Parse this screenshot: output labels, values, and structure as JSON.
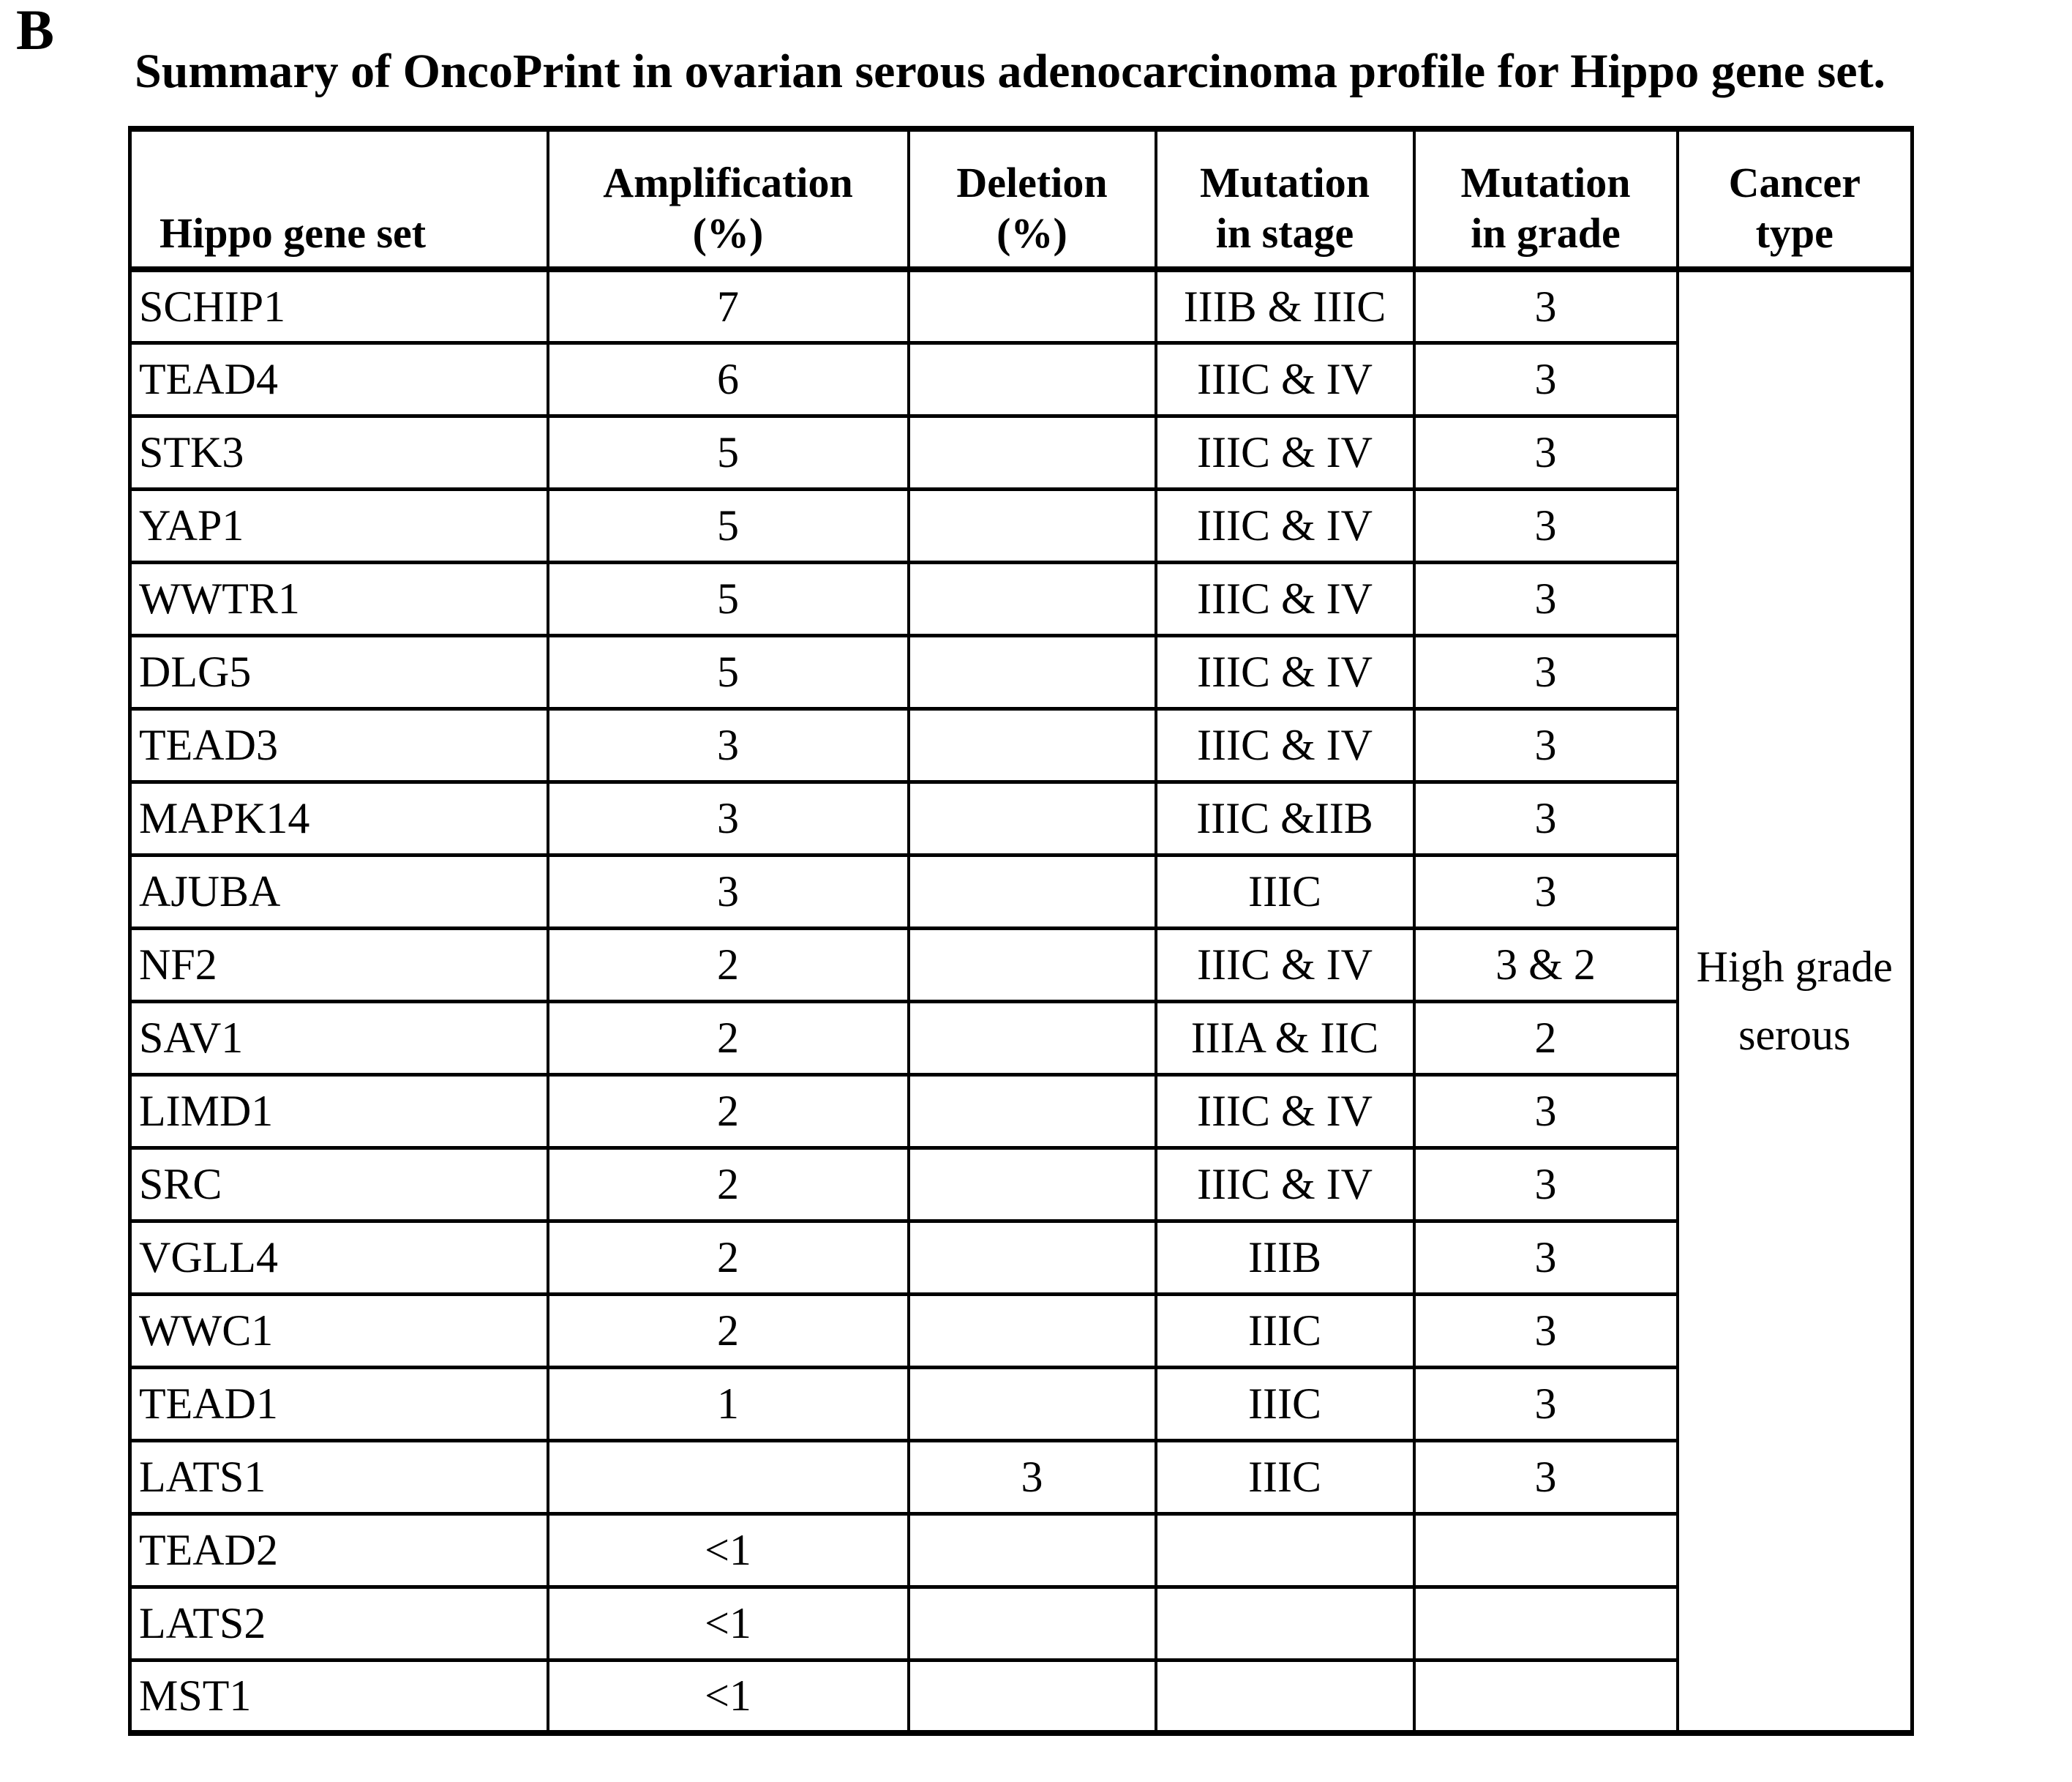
{
  "panel_label": "B",
  "title": "Summary of OncoPrint in ovarian serous adenocarcinoma profile for Hippo gene set.",
  "colors": {
    "text": "#000000",
    "border": "#000000",
    "background": "#ffffff"
  },
  "table": {
    "columns": {
      "gene": {
        "label": "Hippo gene set"
      },
      "amplification": {
        "line1": "Amplification",
        "line2": "(%)"
      },
      "deletion": {
        "line1": "Deletion",
        "line2": "(%)"
      },
      "stage": {
        "line1": "Mutation",
        "line2": "in stage"
      },
      "grade": {
        "line1": "Mutation",
        "line2": "in grade"
      },
      "cancer": {
        "line1": "Cancer",
        "line2": "type"
      }
    },
    "cancer_type": {
      "line1": "High grade",
      "line2": "serous"
    },
    "rows": [
      {
        "gene": "SCHIP1",
        "amplification": "7",
        "deletion": "",
        "stage": "IIIB & IIIC",
        "grade": "3"
      },
      {
        "gene": "TEAD4",
        "amplification": "6",
        "deletion": "",
        "stage": "IIIC & IV",
        "grade": "3"
      },
      {
        "gene": "STK3",
        "amplification": "5",
        "deletion": "",
        "stage": "IIIC & IV",
        "grade": "3"
      },
      {
        "gene": "YAP1",
        "amplification": "5",
        "deletion": "",
        "stage": "IIIC & IV",
        "grade": "3"
      },
      {
        "gene": "WWTR1",
        "amplification": "5",
        "deletion": "",
        "stage": "IIIC & IV",
        "grade": "3"
      },
      {
        "gene": "DLG5",
        "amplification": "5",
        "deletion": "",
        "stage": "IIIC & IV",
        "grade": "3"
      },
      {
        "gene": "TEAD3",
        "amplification": "3",
        "deletion": "",
        "stage": "IIIC & IV",
        "grade": "3"
      },
      {
        "gene": "MAPK14",
        "amplification": "3",
        "deletion": "",
        "stage": "IIIC &IIB",
        "grade": "3"
      },
      {
        "gene": "AJUBA",
        "amplification": "3",
        "deletion": "",
        "stage": "IIIC",
        "grade": "3"
      },
      {
        "gene": "NF2",
        "amplification": "2",
        "deletion": "",
        "stage": "IIIC & IV",
        "grade": "3 & 2"
      },
      {
        "gene": "SAV1",
        "amplification": "2",
        "deletion": "",
        "stage": "IIIA & IIC",
        "grade": "2"
      },
      {
        "gene": "LIMD1",
        "amplification": "2",
        "deletion": "",
        "stage": "IIIC & IV",
        "grade": "3"
      },
      {
        "gene": "SRC",
        "amplification": "2",
        "deletion": "",
        "stage": "IIIC & IV",
        "grade": "3"
      },
      {
        "gene": "VGLL4",
        "amplification": "2",
        "deletion": "",
        "stage": "IIIB",
        "grade": "3"
      },
      {
        "gene": "WWC1",
        "amplification": "2",
        "deletion": "",
        "stage": "IIIC",
        "grade": "3"
      },
      {
        "gene": "TEAD1",
        "amplification": "1",
        "deletion": "",
        "stage": "IIIC",
        "grade": "3"
      },
      {
        "gene": "LATS1",
        "amplification": "",
        "deletion": "3",
        "stage": "IIIC",
        "grade": "3"
      },
      {
        "gene": "TEAD2",
        "amplification": "<1",
        "deletion": "",
        "stage": "",
        "grade": ""
      },
      {
        "gene": "LATS2",
        "amplification": "<1",
        "deletion": "",
        "stage": "",
        "grade": ""
      },
      {
        "gene": "MST1",
        "amplification": "<1",
        "deletion": "",
        "stage": "",
        "grade": ""
      }
    ]
  }
}
